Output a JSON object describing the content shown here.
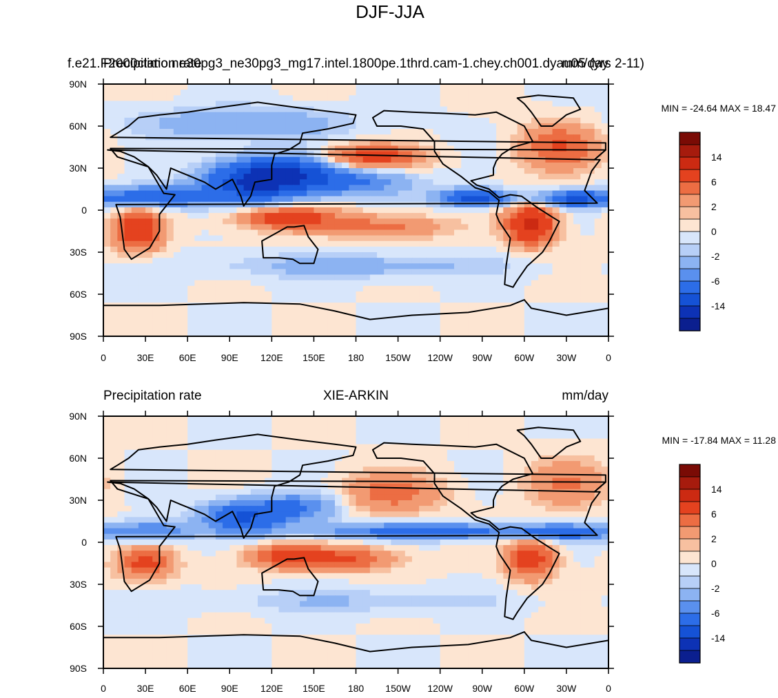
{
  "figure_title": "DJF-JJA",
  "colors": {
    "neg": [
      "#0b1f8f",
      "#0d32b5",
      "#1552d6",
      "#2c6de8",
      "#5a90ee",
      "#8cb3f2",
      "#b7cff7",
      "#d8e6fb"
    ],
    "pos": [
      "#fde5d2",
      "#f7c0a0",
      "#f29a72",
      "#ec6d43",
      "#e4421f",
      "#cc2a12",
      "#a61b0d",
      "#7a0b05"
    ],
    "land": "#000000"
  },
  "chart_data": [
    {
      "type": "heatmap",
      "name": "model",
      "title_left": "Precipitation rate",
      "title_center": "f.e21.F2000climo.ne30pg3_ne30pg3_mg17.intel.1800pe.1thrd.cam-1.chey.ch001.dyau05 (yrs 2-11)",
      "title_right": "mm/day",
      "min_text": "MIN = -24.64",
      "max_text": "MAX =  18.47",
      "min": -24.64,
      "max": 18.47,
      "x_ticks": [
        "0",
        "30E",
        "60E",
        "90E",
        "120E",
        "150E",
        "180",
        "150W",
        "120W",
        "90W",
        "60W",
        "30W",
        "0"
      ],
      "y_ticks": [
        "90N",
        "60N",
        "30N",
        "0",
        "30S",
        "60S",
        "90S"
      ],
      "colorbar_labels": [
        "14",
        "6",
        "2",
        "0",
        "-2",
        "-6",
        "-14"
      ],
      "xlim": [
        0,
        360
      ],
      "ylim": [
        -90,
        90
      ],
      "features": [
        {
          "lon": 110,
          "lat": 20,
          "amp": -14,
          "sx": 25,
          "sy": 10
        },
        {
          "lon": 135,
          "lat": 28,
          "amp": -8,
          "sx": 25,
          "sy": 8
        },
        {
          "lon": 175,
          "lat": 20,
          "amp": -6,
          "sx": 30,
          "sy": 7
        },
        {
          "lon": 40,
          "lat": 10,
          "amp": -10,
          "sx": 25,
          "sy": 5
        },
        {
          "lon": 265,
          "lat": 9,
          "amp": -12,
          "sx": 18,
          "sy": 4
        },
        {
          "lon": 335,
          "lat": 8,
          "amp": -10,
          "sx": 20,
          "sy": 4
        },
        {
          "lon": 190,
          "lat": 38,
          "amp": 8,
          "sx": 25,
          "sy": 6
        },
        {
          "lon": 325,
          "lat": 45,
          "amp": 6,
          "sx": 20,
          "sy": 12
        },
        {
          "lon": 25,
          "lat": -15,
          "amp": 9,
          "sx": 12,
          "sy": 10
        },
        {
          "lon": 130,
          "lat": -5,
          "amp": 8,
          "sx": 25,
          "sy": 6
        },
        {
          "lon": 305,
          "lat": -10,
          "amp": 12,
          "sx": 12,
          "sy": 10
        },
        {
          "lon": 200,
          "lat": -12,
          "amp": 5,
          "sx": 30,
          "sy": 6
        },
        {
          "lon": 180,
          "lat": -40,
          "amp": -3,
          "sx": 70,
          "sy": 6
        },
        {
          "lon": 100,
          "lat": 62,
          "amp": -4,
          "sx": 50,
          "sy": 8
        }
      ]
    },
    {
      "type": "heatmap",
      "name": "obs",
      "title_left": "Precipitation rate",
      "title_center": "XIE-ARKIN",
      "title_right": "mm/day",
      "min_text": "MIN = -17.84",
      "max_text": "MAX =  11.28",
      "min": -17.84,
      "max": 11.28,
      "x_ticks": [
        "0",
        "30E",
        "60E",
        "90E",
        "120E",
        "150E",
        "180",
        "150W",
        "120W",
        "90W",
        "60W",
        "30W",
        "0"
      ],
      "y_ticks": [
        "90N",
        "60N",
        "30N",
        "0",
        "30S",
        "60S",
        "90S"
      ],
      "colorbar_labels": [
        "14",
        "6",
        "2",
        "0",
        "-2",
        "-6",
        "-14"
      ],
      "xlim": [
        0,
        360
      ],
      "ylim": [
        -90,
        90
      ],
      "features": [
        {
          "lon": 100,
          "lat": 18,
          "amp": -10,
          "sx": 20,
          "sy": 8
        },
        {
          "lon": 140,
          "lat": 25,
          "amp": -6,
          "sx": 20,
          "sy": 7
        },
        {
          "lon": 230,
          "lat": 8,
          "amp": -8,
          "sx": 55,
          "sy": 4
        },
        {
          "lon": 330,
          "lat": 7,
          "amp": -7,
          "sx": 25,
          "sy": 4
        },
        {
          "lon": 35,
          "lat": 8,
          "amp": -6,
          "sx": 20,
          "sy": 5
        },
        {
          "lon": 205,
          "lat": 35,
          "amp": 5,
          "sx": 25,
          "sy": 10
        },
        {
          "lon": 330,
          "lat": 42,
          "amp": 4,
          "sx": 20,
          "sy": 12
        },
        {
          "lon": 30,
          "lat": -15,
          "amp": 7,
          "sx": 14,
          "sy": 8
        },
        {
          "lon": 130,
          "lat": -10,
          "amp": 7,
          "sx": 20,
          "sy": 6
        },
        {
          "lon": 175,
          "lat": -12,
          "amp": 6,
          "sx": 25,
          "sy": 6
        },
        {
          "lon": 305,
          "lat": -12,
          "amp": 8,
          "sx": 12,
          "sy": 10
        },
        {
          "lon": 180,
          "lat": -42,
          "amp": -2,
          "sx": 70,
          "sy": 6
        }
      ]
    }
  ]
}
